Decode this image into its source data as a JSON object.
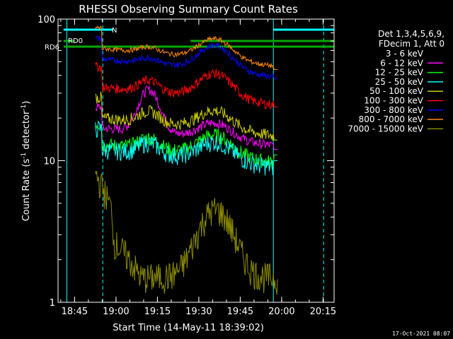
{
  "chart_data": {
    "type": "line",
    "title": "RHESSI Observing Summary Count Rates",
    "xlabel": "Start Time (14-May-11 18:39:02)",
    "ylabel_main": "Count Rate (s",
    "ylabel_sup1": "-1",
    "ylabel_mid": " detector",
    "ylabel_sup2": "-1",
    "ylabel_end": ")",
    "y_scale": "log",
    "ylim": [
      1,
      100
    ],
    "xlim_minutes": [
      0,
      100
    ],
    "x_ticks": [
      {
        "label": "18:45",
        "minutes": 6
      },
      {
        "label": "19:00",
        "minutes": 21
      },
      {
        "label": "19:15",
        "minutes": 36
      },
      {
        "label": "19:30",
        "minutes": 51
      },
      {
        "label": "19:45",
        "minutes": 66
      },
      {
        "label": "20:00",
        "minutes": 81
      },
      {
        "label": "20:15",
        "minutes": 96
      }
    ],
    "y_ticks": [
      {
        "label": "1",
        "value": 1
      },
      {
        "label": "10",
        "value": 10
      },
      {
        "label": "100",
        "value": 100
      }
    ],
    "legend_header": [
      "Det 1,3,4,5,6,9,",
      "FDecim 1, Att 0"
    ],
    "legend_position": "right",
    "series": [
      {
        "name": "3 - 6 keV",
        "color": "#000000"
      },
      {
        "name": "6 - 12 keV",
        "color": "#ff00ff"
      },
      {
        "name": "12 - 25 keV",
        "color": "#00ff00"
      },
      {
        "name": "25 - 50 keV",
        "color": "#00ffff"
      },
      {
        "name": "50 - 100 keV",
        "color": "#cccc00"
      },
      {
        "name": "100 - 300 keV",
        "color": "#ff0000"
      },
      {
        "name": "300 - 800 keV",
        "color": "#0000ff"
      },
      {
        "name": "800 - 7000 keV",
        "color": "#ff8800"
      },
      {
        "name": "7000 - 15000 keV",
        "color": "#8b8b00"
      }
    ],
    "annotations": {
      "rd0": "RD0",
      "rd6": "RD6",
      "saa_marker": "N",
      "timestamp": "17-Oct-2021 08:07"
    },
    "flags": [
      {
        "name": "RD0",
        "color": "#00aa00",
        "segments": [
          [
            2,
            6
          ],
          [
            48,
            100
          ]
        ]
      },
      {
        "name": "RD6",
        "color": "#00aa00",
        "segments": [
          [
            2,
            100
          ]
        ]
      }
    ],
    "cyan_flag": {
      "color": "#00ffff",
      "segments": [
        [
          2,
          20
        ],
        [
          78,
          100
        ]
      ]
    },
    "vlines_dashed": [
      16.2,
      96.2
    ],
    "vlines_solid": [
      3.2,
      78.0
    ]
  }
}
